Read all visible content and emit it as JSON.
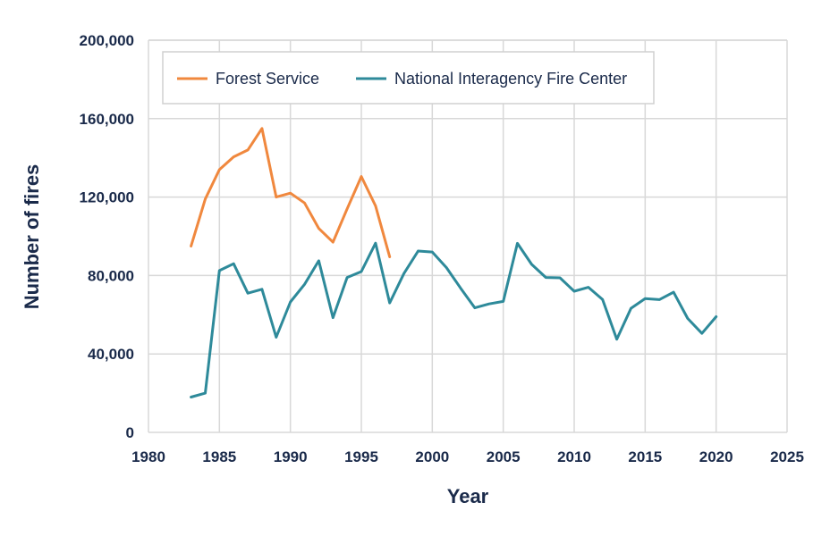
{
  "chart_data": {
    "type": "line",
    "title": "",
    "xlabel": "Year",
    "ylabel": "Number of fires",
    "xlim": [
      1980,
      2025
    ],
    "ylim": [
      0,
      200000
    ],
    "x_ticks": [
      1980,
      1985,
      1990,
      1995,
      2000,
      2005,
      2010,
      2015,
      2020,
      2025
    ],
    "x_tick_labels": [
      "1980",
      "1985",
      "1990",
      "1995",
      "2000",
      "2005",
      "2010",
      "2015",
      "2020",
      "2025"
    ],
    "y_ticks": [
      0,
      40000,
      80000,
      120000,
      160000,
      200000
    ],
    "y_tick_labels": [
      "0",
      "40,000",
      "80,000",
      "120,000",
      "160,000",
      "200,000"
    ],
    "grid": true,
    "legend_position": "top-left",
    "series": [
      {
        "name": "Forest Service",
        "color": "#f0883e",
        "x": [
          1983,
          1984,
          1985,
          1986,
          1987,
          1988,
          1989,
          1990,
          1991,
          1992,
          1993,
          1994,
          1995,
          1996,
          1997
        ],
        "values": [
          95000,
          119000,
          134000,
          140500,
          144000,
          155000,
          120000,
          122000,
          117000,
          104000,
          97000,
          114000,
          130500,
          115500,
          89500
        ]
      },
      {
        "name": "National Interagency Fire Center",
        "color": "#2e8a9a",
        "x": [
          1983,
          1984,
          1985,
          1986,
          1987,
          1988,
          1989,
          1990,
          1991,
          1992,
          1993,
          1994,
          1995,
          1996,
          1997,
          1998,
          1999,
          2000,
          2001,
          2002,
          2003,
          2004,
          2005,
          2006,
          2007,
          2008,
          2009,
          2010,
          2011,
          2012,
          2013,
          2014,
          2015,
          2016,
          2017,
          2018,
          2019,
          2020
        ],
        "values": [
          18000,
          20000,
          82500,
          86000,
          71000,
          73000,
          48500,
          66500,
          75500,
          87500,
          58500,
          79000,
          82000,
          96500,
          66000,
          81000,
          92500,
          92000,
          84000,
          73500,
          63500,
          65500,
          66800,
          96400,
          85700,
          79000,
          78800,
          72000,
          74000,
          67800,
          47500,
          63300,
          68200,
          67700,
          71500,
          58100,
          50500,
          59000
        ]
      }
    ]
  }
}
